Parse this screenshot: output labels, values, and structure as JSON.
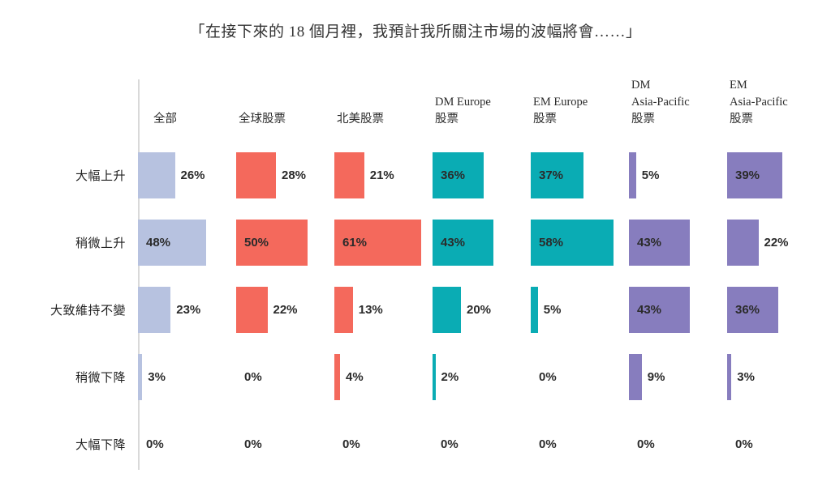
{
  "chart_data": {
    "type": "bar",
    "orientation": "horizontal",
    "title": "「在接下來的 18 個月裡，我預計我所關注市場的波幅將會……」",
    "unit": "%",
    "xlim": [
      0,
      100
    ],
    "grid": false,
    "legend": "none",
    "columns": [
      {
        "label_lines": [
          "全部"
        ],
        "label": "全部",
        "color": "#b7c2e0"
      },
      {
        "label_lines": [
          "全球股票"
        ],
        "label": "全球股票",
        "color": "#f4695c"
      },
      {
        "label_lines": [
          "北美股票"
        ],
        "label": "北美股票",
        "color": "#f4695c"
      },
      {
        "label_lines": [
          "DM Europe",
          "股票"
        ],
        "label": "DM Europe 股票",
        "color": "#0aacb4"
      },
      {
        "label_lines": [
          "EM Europe",
          "股票"
        ],
        "label": "EM Europe 股票",
        "color": "#0aacb4"
      },
      {
        "label_lines": [
          "DM",
          "Asia-Pacific",
          "股票"
        ],
        "label": "DM Asia-Pacific 股票",
        "color": "#877dbe"
      },
      {
        "label_lines": [
          "EM",
          "Asia-Pacific",
          "股票"
        ],
        "label": "EM Asia-Pacific 股票",
        "color": "#877dbe"
      }
    ],
    "rows": [
      {
        "label": "大幅上升",
        "values": [
          26,
          28,
          21,
          36,
          37,
          5,
          39
        ]
      },
      {
        "label": "稍微上升",
        "values": [
          48,
          50,
          61,
          43,
          58,
          43,
          22
        ]
      },
      {
        "label": "大致維持不變",
        "values": [
          23,
          22,
          13,
          20,
          5,
          43,
          36
        ]
      },
      {
        "label": "稍微下降",
        "values": [
          3,
          0,
          4,
          2,
          0,
          9,
          3
        ]
      },
      {
        "label": "大幅下降",
        "values": [
          0,
          0,
          0,
          0,
          0,
          0,
          0
        ]
      }
    ],
    "value_label_format": "{value}%"
  },
  "colors": {
    "axis_line": "#d9d9d9",
    "value_text": "#2b2b2b",
    "header_text": "#2b2b2b",
    "row_label_text": "#1f1f1f"
  }
}
